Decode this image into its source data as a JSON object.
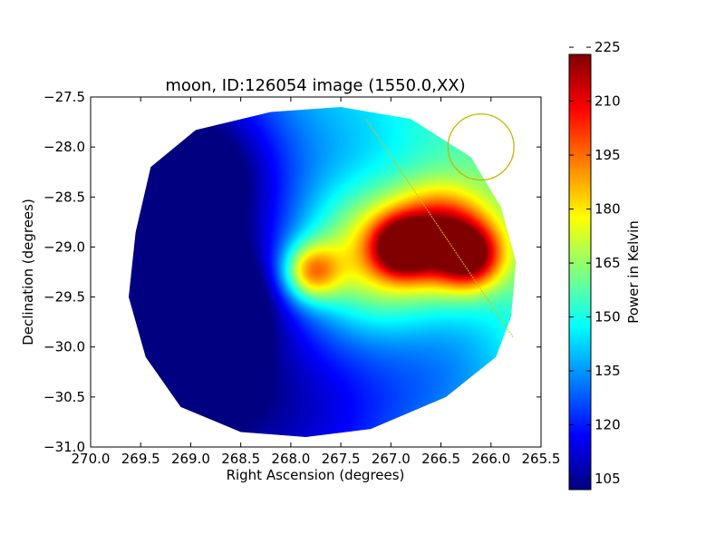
{
  "chart_data": {
    "type": "heatmap",
    "title": "moon, ID:126054 image (1550.0,XX)",
    "xlabel": "Right Ascension (degrees)",
    "ylabel": "Declination (degrees)",
    "xlim": [
      270.0,
      265.5
    ],
    "ylim": [
      -31.0,
      -27.5
    ],
    "x_ticks": [
      270.0,
      269.5,
      269.0,
      268.5,
      268.0,
      267.5,
      267.0,
      266.5,
      266.0,
      265.5
    ],
    "x_tick_labels": [
      "270.0",
      "269.5",
      "269.0",
      "268.5",
      "268.0",
      "267.5",
      "267.0",
      "266.5",
      "266.0",
      "265.5"
    ],
    "y_ticks": [
      -27.5,
      -28.0,
      -28.5,
      -29.0,
      -29.5,
      -30.0,
      -30.5,
      -31.0
    ],
    "y_tick_labels": [
      "−27.5",
      "−28.0",
      "−28.5",
      "−29.0",
      "−29.5",
      "−30.0",
      "−30.5",
      "−31.0"
    ],
    "colorbar": {
      "label": "Power in Kelvin",
      "range": [
        102,
        223
      ],
      "ticks": [
        105,
        120,
        135,
        150,
        165,
        180,
        195,
        210,
        225
      ],
      "tick_labels": [
        "105",
        "120",
        "135",
        "150",
        "165",
        "180",
        "195",
        "210",
        "225"
      ],
      "colormap": "jet"
    },
    "map_boundary": [
      [
        269.4,
        -28.2
      ],
      [
        268.95,
        -27.83
      ],
      [
        268.2,
        -27.65
      ],
      [
        267.5,
        -27.6
      ],
      [
        266.8,
        -27.72
      ],
      [
        266.2,
        -28.1
      ],
      [
        265.9,
        -28.6
      ],
      [
        265.75,
        -29.15
      ],
      [
        265.8,
        -29.7
      ],
      [
        265.95,
        -30.1
      ],
      [
        266.45,
        -30.5
      ],
      [
        267.2,
        -30.82
      ],
      [
        267.85,
        -30.9
      ],
      [
        268.5,
        -30.85
      ],
      [
        269.1,
        -30.6
      ],
      [
        269.45,
        -30.1
      ],
      [
        269.62,
        -29.5
      ],
      [
        269.55,
        -28.85
      ]
    ],
    "background_level": 145,
    "sources": [
      {
        "ra": 269.35,
        "dec": -29.0,
        "value": 104,
        "sigma": 0.9
      },
      {
        "ra": 269.2,
        "dec": -30.4,
        "value": 106,
        "sigma": 0.7
      },
      {
        "ra": 268.9,
        "dec": -28.2,
        "value": 112,
        "sigma": 0.6
      },
      {
        "ra": 267.7,
        "dec": -30.7,
        "value": 112,
        "sigma": 0.8
      },
      {
        "ra": 266.3,
        "dec": -30.2,
        "value": 125,
        "sigma": 0.6
      },
      {
        "ra": 267.3,
        "dec": -28.05,
        "value": 138,
        "sigma": 0.45
      },
      {
        "ra": 268.55,
        "dec": -29.55,
        "value": 122,
        "sigma": 0.35
      },
      {
        "ra": 267.2,
        "dec": -29.1,
        "value": 190,
        "sigma": 0.45
      },
      {
        "ra": 267.8,
        "dec": -29.25,
        "value": 205,
        "sigma": 0.2
      },
      {
        "ra": 266.5,
        "dec": -28.9,
        "value": 222,
        "sigma": 0.32
      },
      {
        "ra": 266.9,
        "dec": -29.0,
        "value": 215,
        "sigma": 0.2
      },
      {
        "ra": 266.2,
        "dec": -29.1,
        "value": 212,
        "sigma": 0.22
      }
    ],
    "circle": {
      "ra": 266.1,
      "dec": -28.0,
      "radius_deg": 0.33,
      "color": "#c8b400"
    },
    "track": {
      "start": [
        267.25,
        -27.72
      ],
      "end": [
        265.78,
        -29.9
      ],
      "color": "#d8c000"
    }
  }
}
